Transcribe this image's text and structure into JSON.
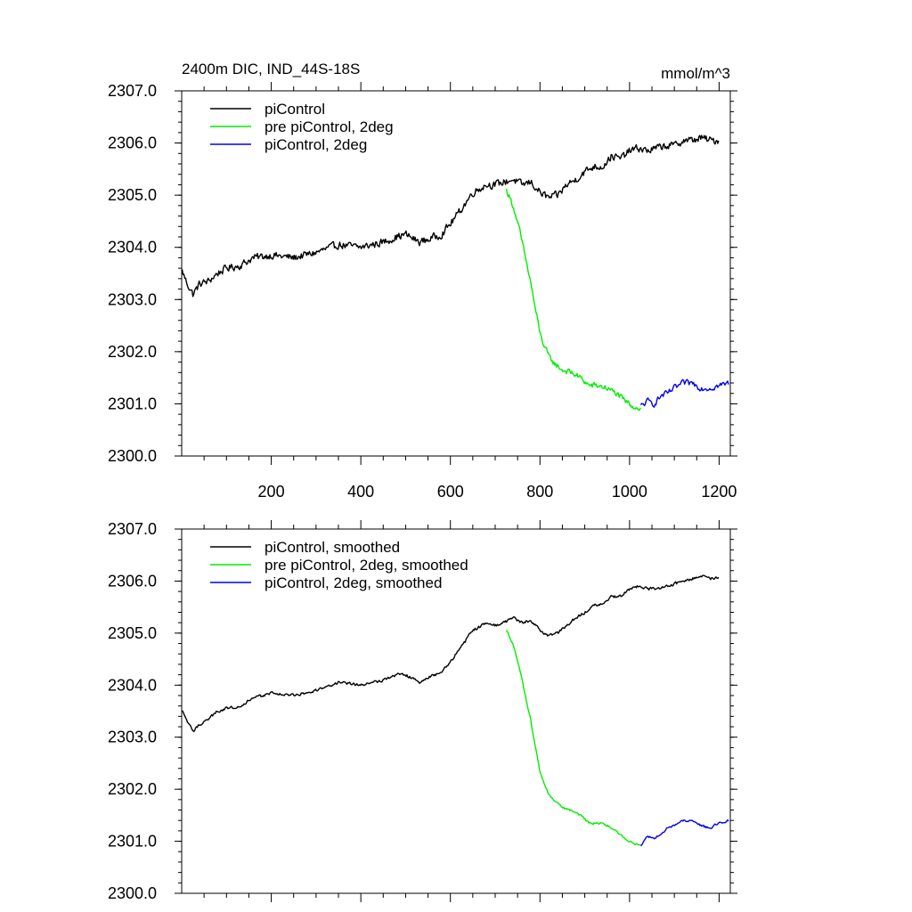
{
  "chart_data": [
    {
      "type": "line",
      "title_left": "2400m DIC, IND_44S-18S",
      "title_right": "mmol/m^3",
      "xlim": [
        0,
        1225
      ],
      "ylim": [
        2300.0,
        2307.0
      ],
      "x_ticks": [
        200,
        400,
        600,
        800,
        1000,
        1200
      ],
      "x_tick_labels": [
        "200",
        "400",
        "600",
        "800",
        "1000",
        "1200"
      ],
      "y_ticks": [
        2300.0,
        2301.0,
        2302.0,
        2303.0,
        2304.0,
        2305.0,
        2306.0,
        2307.0
      ],
      "y_tick_labels": [
        "2300.0",
        "2301.0",
        "2302.0",
        "2303.0",
        "2304.0",
        "2305.0",
        "2306.0",
        "2307.0"
      ],
      "show_x_tick_labels": true,
      "legend": "top-left",
      "series": [
        {
          "name": "piControl",
          "color": "#000000",
          "noise": 0.1,
          "x": [
            1,
            10,
            25,
            40,
            60,
            80,
            100,
            130,
            160,
            200,
            250,
            300,
            350,
            400,
            450,
            480,
            500,
            530,
            550,
            580,
            600,
            630,
            650,
            680,
            700,
            720,
            740,
            760,
            780,
            800,
            820,
            840,
            860,
            880,
            900,
            920,
            940,
            960,
            980,
            1000,
            1020,
            1040,
            1060,
            1080,
            1100,
            1120,
            1140,
            1160,
            1180,
            1200
          ],
          "y": [
            2303.55,
            2303.35,
            2303.1,
            2303.3,
            2303.35,
            2303.5,
            2303.6,
            2303.65,
            2303.8,
            2303.85,
            2303.8,
            2303.9,
            2304.05,
            2304.0,
            2304.1,
            2304.2,
            2304.25,
            2304.1,
            2304.15,
            2304.25,
            2304.45,
            2304.8,
            2305.05,
            2305.2,
            2305.2,
            2305.25,
            2305.3,
            2305.2,
            2305.25,
            2305.05,
            2304.95,
            2305.0,
            2305.2,
            2305.3,
            2305.45,
            2305.55,
            2305.55,
            2305.75,
            2305.7,
            2305.85,
            2305.9,
            2305.85,
            2305.9,
            2305.95,
            2305.95,
            2306.05,
            2306.05,
            2306.1,
            2306.05,
            2306.05
          ]
        },
        {
          "name": "pre piControl, 2deg",
          "color": "#00ee00",
          "noise": 0.08,
          "x": [
            725,
            740,
            755,
            770,
            780,
            790,
            800,
            810,
            820,
            835,
            850,
            870,
            890,
            910,
            930,
            950,
            970,
            990,
            1010,
            1025
          ],
          "y": [
            2305.1,
            2304.8,
            2304.3,
            2303.7,
            2303.3,
            2302.8,
            2302.35,
            2302.1,
            2301.9,
            2301.75,
            2301.65,
            2301.6,
            2301.5,
            2301.35,
            2301.35,
            2301.3,
            2301.2,
            2301.05,
            2300.95,
            2300.9
          ]
        },
        {
          "name": "piControl, 2deg",
          "color": "#0000ee",
          "noise": 0.08,
          "x": [
            1025,
            1040,
            1055,
            1070,
            1085,
            1100,
            1120,
            1140,
            1160,
            1180,
            1200,
            1222
          ],
          "y": [
            2300.95,
            2301.05,
            2301.0,
            2301.15,
            2301.2,
            2301.3,
            2301.4,
            2301.4,
            2301.3,
            2301.3,
            2301.35,
            2301.4
          ]
        }
      ]
    },
    {
      "type": "line",
      "xlim": [
        0,
        1225
      ],
      "ylim": [
        2300.0,
        2307.0
      ],
      "x_ticks": [
        200,
        400,
        600,
        800,
        1000,
        1200
      ],
      "y_ticks": [
        2300.0,
        2301.0,
        2302.0,
        2303.0,
        2304.0,
        2305.0,
        2306.0,
        2307.0
      ],
      "y_tick_labels": [
        "2300.0",
        "2301.0",
        "2302.0",
        "2303.0",
        "2304.0",
        "2305.0",
        "2306.0",
        "2307.0"
      ],
      "show_x_tick_labels": false,
      "legend": "top-left",
      "series": [
        {
          "name": "piControl, smoothed",
          "color": "#000000",
          "noise": 0.04,
          "x": [
            1,
            10,
            25,
            40,
            60,
            80,
            100,
            130,
            160,
            200,
            250,
            300,
            350,
            400,
            450,
            480,
            500,
            530,
            550,
            580,
            600,
            630,
            650,
            680,
            700,
            720,
            740,
            760,
            780,
            800,
            820,
            840,
            860,
            880,
            900,
            920,
            940,
            960,
            980,
            1000,
            1020,
            1040,
            1060,
            1080,
            1100,
            1120,
            1140,
            1160,
            1180,
            1200
          ],
          "y": [
            2303.5,
            2303.35,
            2303.1,
            2303.25,
            2303.35,
            2303.5,
            2303.55,
            2303.6,
            2303.75,
            2303.85,
            2303.8,
            2303.9,
            2304.05,
            2304.0,
            2304.1,
            2304.2,
            2304.2,
            2304.05,
            2304.15,
            2304.25,
            2304.45,
            2304.8,
            2305.05,
            2305.2,
            2305.15,
            2305.2,
            2305.3,
            2305.2,
            2305.25,
            2305.05,
            2304.95,
            2305.0,
            2305.15,
            2305.3,
            2305.4,
            2305.55,
            2305.55,
            2305.7,
            2305.7,
            2305.85,
            2305.9,
            2305.85,
            2305.85,
            2305.9,
            2305.95,
            2306.0,
            2306.05,
            2306.1,
            2306.05,
            2306.05
          ]
        },
        {
          "name": "pre piControl, 2deg, smoothed",
          "color": "#00ee00",
          "noise": 0.03,
          "x": [
            725,
            740,
            755,
            770,
            780,
            790,
            800,
            810,
            820,
            835,
            850,
            870,
            890,
            910,
            930,
            950,
            970,
            990,
            1010,
            1025
          ],
          "y": [
            2305.05,
            2304.8,
            2304.3,
            2303.7,
            2303.3,
            2302.8,
            2302.35,
            2302.1,
            2301.9,
            2301.75,
            2301.65,
            2301.6,
            2301.5,
            2301.35,
            2301.35,
            2301.3,
            2301.2,
            2301.05,
            2300.95,
            2300.95
          ]
        },
        {
          "name": "piControl, 2deg, smoothed",
          "color": "#0000ee",
          "noise": 0.03,
          "x": [
            1025,
            1040,
            1055,
            1070,
            1085,
            1100,
            1120,
            1140,
            1160,
            1180,
            1200,
            1222
          ],
          "y": [
            2300.9,
            2301.1,
            2301.05,
            2301.15,
            2301.25,
            2301.3,
            2301.4,
            2301.4,
            2301.3,
            2301.25,
            2301.35,
            2301.4
          ]
        }
      ]
    }
  ]
}
